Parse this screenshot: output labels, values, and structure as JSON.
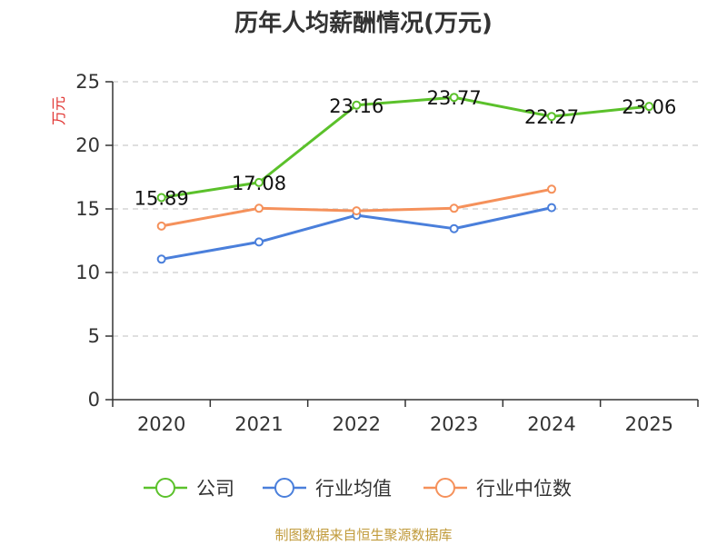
{
  "chart_data": {
    "type": "line",
    "title": "历年人均薪酬情况(万元)",
    "ylabel": "万元",
    "xlabel": "",
    "categories": [
      "2020",
      "2021",
      "2022",
      "2023",
      "2024",
      "2025"
    ],
    "ylim": [
      0,
      25
    ],
    "yticks": [
      "0",
      "5",
      "10",
      "15",
      "20",
      "25"
    ],
    "grid": true,
    "legend_position": "bottom-center",
    "series": [
      {
        "name": "公司",
        "color": "#5bc12b",
        "values": [
          15.89,
          17.08,
          23.16,
          23.77,
          22.27,
          23.06
        ],
        "labels": [
          "15.89",
          "17.08",
          "23.16",
          "23.77",
          "22.27",
          "23.06"
        ],
        "show_labels": true
      },
      {
        "name": "行业均值",
        "color": "#4a7fdb",
        "values": [
          11.05,
          12.4,
          14.5,
          13.45,
          15.1,
          null
        ],
        "show_labels": false
      },
      {
        "name": "行业中位数",
        "color": "#f5915b",
        "values": [
          13.65,
          15.05,
          14.85,
          15.05,
          16.55,
          null
        ],
        "show_labels": false
      }
    ]
  },
  "colors": {
    "ylabel": "#e0312e",
    "source": "#c09a3a",
    "axis": "#333333",
    "grid": "#cccccc"
  },
  "source_text": "制图数据来自恒生聚源数据库"
}
